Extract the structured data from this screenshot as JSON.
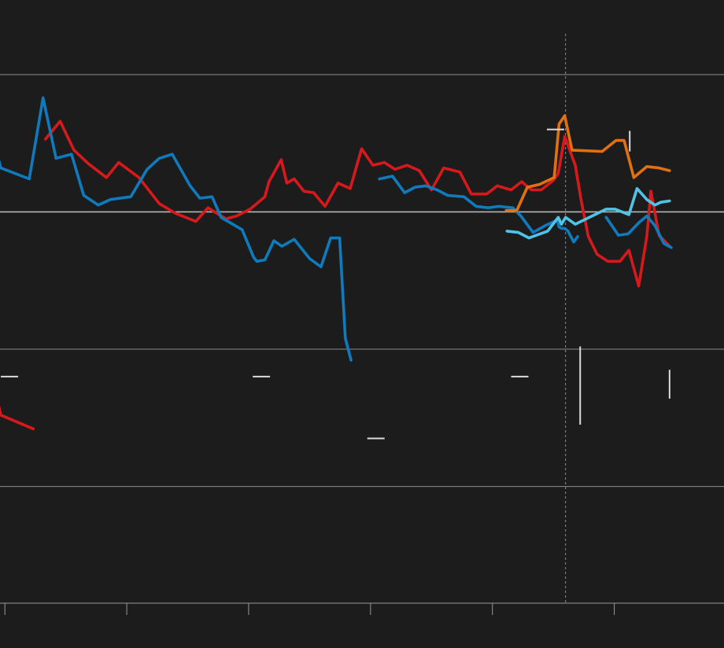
{
  "chart_data": {
    "type": "line",
    "title": "",
    "xlabel": "",
    "ylabel": "",
    "legend": "none",
    "grid": "horizontal",
    "xlim": [
      -6,
      885
    ],
    "ylim": [
      -28.5,
      14
    ],
    "y_gridlines": [
      -20,
      -10,
      0,
      10
    ],
    "x_ticks": [
      0,
      150,
      300,
      450,
      600,
      750
    ],
    "dashed_reference_x": [
      -9,
      690
    ],
    "colors": {
      "background": "#1c1c1c",
      "grid": "#8c8c8c",
      "red": "#d7191c",
      "blue": "#0f7bbd",
      "light_blue": "#4fc3e8",
      "orange": "#e2700f",
      "marker": "#dcdcdc"
    },
    "series": [
      {
        "color": "red",
        "points": [
          [
            -19,
            -12.8
          ],
          [
            -17,
            -12.2
          ],
          [
            -15,
            -11.5
          ],
          [
            -13,
            -12.5
          ],
          [
            -10,
            -9.5
          ],
          [
            -8,
            -14
          ],
          [
            -5,
            -14.8
          ],
          [
            35,
            -15.8
          ]
        ]
      },
      {
        "color": "red",
        "points": [
          [
            50,
            5.3
          ],
          [
            68,
            6.6
          ],
          [
            85,
            4.5
          ],
          [
            103,
            3.5
          ],
          [
            125,
            2.5
          ],
          [
            140,
            3.6
          ],
          [
            165,
            2.5
          ],
          [
            190,
            0.6
          ],
          [
            210,
            -0.1
          ],
          [
            235,
            -0.7
          ],
          [
            250,
            0.3
          ],
          [
            272,
            -0.5
          ],
          [
            285,
            -0.3
          ],
          [
            302,
            0.2
          ],
          [
            320,
            1.1
          ],
          [
            325,
            2.2
          ],
          [
            340,
            3.8
          ],
          [
            347,
            2.1
          ],
          [
            356,
            2.4
          ],
          [
            368,
            1.5
          ],
          [
            380,
            1.4
          ],
          [
            394,
            0.4
          ],
          [
            410,
            2.1
          ],
          [
            425,
            1.7
          ],
          [
            439,
            4.6
          ],
          [
            453,
            3.4
          ],
          [
            467,
            3.6
          ],
          [
            480,
            3.1
          ],
          [
            495,
            3.4
          ],
          [
            510,
            3.0
          ],
          [
            525,
            1.6
          ],
          [
            540,
            3.2
          ],
          [
            560,
            2.9
          ],
          [
            574,
            1.3
          ],
          [
            593,
            1.3
          ],
          [
            606,
            1.9
          ],
          [
            623,
            1.6
          ],
          [
            636,
            2.2
          ],
          [
            648,
            1.6
          ],
          [
            660,
            1.6
          ],
          [
            675,
            2.3
          ],
          [
            681,
            2.8
          ],
          [
            689,
            5.5
          ],
          [
            702,
            3.4
          ],
          [
            709,
            0.9
          ],
          [
            718,
            -1.8
          ],
          [
            729,
            -3.1
          ],
          [
            742,
            -3.6
          ],
          [
            757,
            -3.6
          ],
          [
            768,
            -2.8
          ],
          [
            780,
            -5.4
          ],
          [
            790,
            -1.8
          ],
          [
            795,
            1.5
          ],
          [
            805,
            -1.7
          ],
          [
            818,
            -2.5
          ]
        ]
      },
      {
        "color": "blue",
        "points": [
          [
            -19,
            3.2
          ],
          [
            -17,
            2.9
          ],
          [
            -15,
            2.2
          ],
          [
            -12,
            2.2
          ],
          [
            -9,
            4.1
          ],
          [
            -5,
            3.2
          ],
          [
            30,
            2.4
          ],
          [
            47,
            8.3
          ],
          [
            63,
            3.9
          ],
          [
            82,
            4.2
          ],
          [
            97,
            1.2
          ],
          [
            115,
            0.5
          ],
          [
            130,
            0.9
          ],
          [
            155,
            1.1
          ],
          [
            175,
            3.1
          ],
          [
            190,
            3.9
          ],
          [
            206,
            4.2
          ],
          [
            228,
            1.9
          ],
          [
            240,
            1.0
          ],
          [
            255,
            1.1
          ],
          [
            266,
            -0.4
          ],
          [
            292,
            -1.3
          ],
          [
            306,
            -3.3
          ],
          [
            310,
            -3.6
          ],
          [
            320,
            -3.5
          ],
          [
            331,
            -2.1
          ],
          [
            341,
            -2.5
          ],
          [
            356,
            -2.0
          ],
          [
            375,
            -3.4
          ],
          [
            389,
            -4.0
          ],
          [
            401,
            -1.9
          ],
          [
            412,
            -1.9
          ],
          [
            419,
            -9.2
          ],
          [
            426,
            -10.8
          ]
        ]
      },
      {
        "color": "blue",
        "points": [
          [
            461,
            2.4
          ],
          [
            477,
            2.6
          ],
          [
            492,
            1.4
          ],
          [
            505,
            1.8
          ],
          [
            518,
            1.9
          ],
          [
            532,
            1.6
          ],
          [
            545,
            1.2
          ],
          [
            565,
            1.1
          ],
          [
            580,
            0.4
          ],
          [
            595,
            0.3
          ],
          [
            608,
            0.4
          ],
          [
            625,
            0.3
          ],
          [
            635,
            -0.3
          ],
          [
            650,
            -1.5
          ],
          [
            665,
            -1.0
          ],
          [
            680,
            -0.6
          ],
          [
            682,
            -1.1
          ],
          [
            685,
            -1.2
          ],
          [
            689,
            -1.2
          ],
          [
            693,
            -1.4
          ],
          [
            700,
            -2.2
          ],
          [
            705,
            -1.8
          ]
        ]
      },
      {
        "color": "blue",
        "points": [
          [
            740,
            -0.4
          ],
          [
            755,
            -1.7
          ],
          [
            767,
            -1.6
          ],
          [
            780,
            -0.8
          ],
          [
            790,
            -0.3
          ],
          [
            800,
            -1.0
          ],
          [
            811,
            -2.3
          ],
          [
            820,
            -2.6
          ]
        ]
      },
      {
        "color": "light_blue",
        "points": [
          [
            618,
            -1.4
          ],
          [
            632,
            -1.5
          ],
          [
            645,
            -1.9
          ],
          [
            668,
            -1.4
          ],
          [
            681,
            -0.4
          ],
          [
            685,
            -0.9
          ],
          [
            690,
            -0.4
          ],
          [
            702,
            -0.9
          ],
          [
            740,
            0.2
          ],
          [
            751,
            0.2
          ],
          [
            768,
            -0.2
          ],
          [
            778,
            1.7
          ],
          [
            790,
            0.9
          ],
          [
            800,
            0.5
          ],
          [
            807,
            0.7
          ],
          [
            818,
            0.8
          ]
        ]
      },
      {
        "color": "orange",
        "points": [
          [
            617,
            0.1
          ],
          [
            630,
            0.1
          ],
          [
            643,
            1.8
          ],
          [
            658,
            2.0
          ],
          [
            676,
            2.5
          ],
          [
            682,
            6.4
          ],
          [
            689,
            7.0
          ],
          [
            698,
            4.5
          ],
          [
            735,
            4.4
          ],
          [
            752,
            5.2
          ],
          [
            762,
            5.2
          ],
          [
            774,
            2.5
          ],
          [
            790,
            3.3
          ],
          [
            805,
            3.2
          ],
          [
            818,
            3.0
          ]
        ]
      }
    ],
    "range_markers": [
      {
        "x": -5,
        "y": -12.0,
        "kind": "tick"
      },
      {
        "x": 305,
        "y": -12.0,
        "kind": "tick"
      },
      {
        "x": 446,
        "y": -16.5,
        "kind": "tick"
      },
      {
        "x": 623,
        "y": -12.0,
        "kind": "tick"
      },
      {
        "x": 667,
        "y": 6.0,
        "kind": "tick"
      },
      {
        "x": 708,
        "y": -12.8,
        "low": -15.5,
        "high": -9.8,
        "kind": "bar"
      },
      {
        "x": 769,
        "y": 5.0,
        "low": 4.4,
        "high": 5.9,
        "kind": "bar"
      },
      {
        "x": 818,
        "y": -12.7,
        "low": -13.6,
        "high": -11.5,
        "kind": "bar"
      }
    ]
  }
}
